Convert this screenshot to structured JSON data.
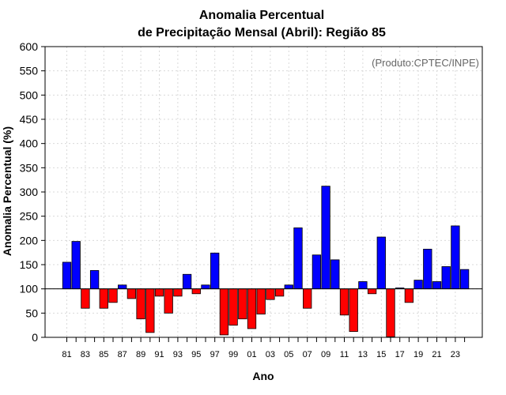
{
  "chart_data": {
    "type": "bar",
    "title": [
      "Anomalia Percentual",
      "de Precipitação Mensal (Abril): Região 85"
    ],
    "xlabel": "Ano",
    "ylabel": "Anomalia Percentual (%)",
    "watermark": "(Produto:CPTEC/INPE)",
    "baseline": 100,
    "ylim": [
      0,
      600
    ],
    "yticks": [
      0,
      50,
      100,
      150,
      200,
      250,
      300,
      350,
      400,
      450,
      500,
      550,
      600
    ],
    "categories": [
      "81",
      "82",
      "83",
      "84",
      "85",
      "86",
      "87",
      "88",
      "89",
      "90",
      "91",
      "92",
      "93",
      "94",
      "95",
      "96",
      "97",
      "98",
      "99",
      "00",
      "01",
      "02",
      "03",
      "04",
      "05",
      "06",
      "07",
      "08",
      "09",
      "10",
      "11",
      "12",
      "13",
      "14",
      "15",
      "16",
      "17",
      "18",
      "19",
      "20",
      "21",
      "22",
      "23",
      "24"
    ],
    "xtick_labels": [
      "81",
      "83",
      "85",
      "87",
      "89",
      "91",
      "93",
      "95",
      "97",
      "99",
      "01",
      "03",
      "05",
      "07",
      "09",
      "11",
      "13",
      "15",
      "17",
      "19",
      "21",
      "23"
    ],
    "values": [
      155,
      198,
      60,
      138,
      60,
      72,
      108,
      80,
      38,
      10,
      85,
      50,
      85,
      130,
      90,
      108,
      174,
      5,
      25,
      38,
      18,
      48,
      78,
      85,
      108,
      226,
      60,
      170,
      312,
      160,
      46,
      12,
      115,
      90,
      207,
      1,
      102,
      72,
      118,
      182,
      115,
      146,
      230,
      140
    ],
    "colors": {
      "above": "#0000ff",
      "below": "#ff0000"
    },
    "grid": true
  }
}
